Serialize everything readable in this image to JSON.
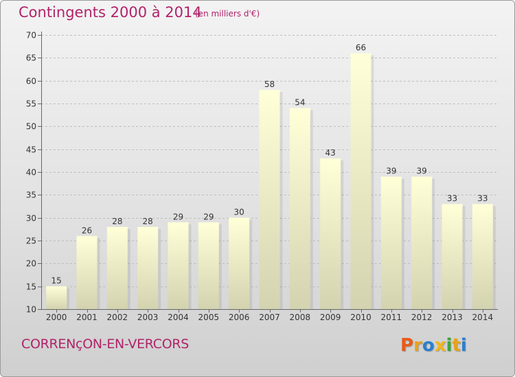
{
  "header": {
    "title": "Contingents 2000 à 2014",
    "subtitle": "(en milliers d'€)"
  },
  "footer": {
    "place_name": "CORRENçON-EN-VERCORS",
    "logo_text": "Proxiti"
  },
  "colors": {
    "accent": "#b0236a",
    "bar_top": "#ffffd8",
    "bar_bottom": "#d3d3b0",
    "logo": [
      "#e85a1a",
      "#e8a21a",
      "#2a7fd0",
      "#f0b81a",
      "#3aa83a",
      "#e8a21a",
      "#2a7fd0"
    ]
  },
  "chart_data": {
    "type": "bar",
    "categories": [
      "2000",
      "2001",
      "2002",
      "2003",
      "2004",
      "2005",
      "2006",
      "2007",
      "2008",
      "2009",
      "2010",
      "2011",
      "2012",
      "2013",
      "2014"
    ],
    "values": [
      15,
      26,
      28,
      28,
      29,
      29,
      30,
      58,
      54,
      43,
      66,
      39,
      39,
      33,
      33
    ],
    "ylim": [
      10,
      70
    ],
    "yticks": [
      "10",
      "15",
      "20",
      "25",
      "30",
      "35",
      "40",
      "45",
      "50",
      "55",
      "60",
      "65",
      "70"
    ],
    "grid": true,
    "xlabel": "",
    "ylabel": ""
  }
}
